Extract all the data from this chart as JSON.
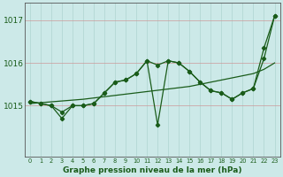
{
  "hours": [
    0,
    1,
    2,
    3,
    4,
    5,
    6,
    7,
    8,
    9,
    10,
    11,
    12,
    13,
    14,
    15,
    16,
    17,
    18,
    19,
    20,
    21,
    22,
    23
  ],
  "series1": [
    1015.1,
    1015.05,
    1015.0,
    1014.85,
    1015.0,
    1015.0,
    1015.05,
    1015.3,
    1015.55,
    1015.6,
    1015.75,
    1016.05,
    1015.95,
    1016.05,
    1016.0,
    1015.8,
    1015.55,
    1015.35,
    1015.3,
    1015.15,
    1015.3,
    1015.4,
    1016.35,
    1017.1
  ],
  "series2": [
    1015.1,
    1015.05,
    1015.0,
    1014.7,
    1015.0,
    1015.0,
    1015.05,
    1015.3,
    1015.55,
    1015.6,
    1015.75,
    1016.05,
    1014.55,
    1016.05,
    1016.0,
    1015.8,
    1015.55,
    1015.35,
    1015.3,
    1015.15,
    1015.3,
    1015.4,
    1016.1,
    1017.1
  ],
  "trend": [
    1015.05,
    1015.07,
    1015.09,
    1015.11,
    1015.13,
    1015.15,
    1015.18,
    1015.21,
    1015.24,
    1015.27,
    1015.3,
    1015.33,
    1015.36,
    1015.39,
    1015.42,
    1015.45,
    1015.5,
    1015.55,
    1015.6,
    1015.65,
    1015.7,
    1015.75,
    1015.85,
    1016.0
  ],
  "ylim": [
    1013.8,
    1017.4
  ],
  "yticks": [
    1015.0,
    1016.0,
    1017.0
  ],
  "yticklabels": [
    "1015",
    "1016",
    "1017"
  ],
  "bg_color": "#cce9e8",
  "line_color": "#1a5c1a",
  "grid_color_v": "#aed4d0",
  "grid_color_h": "#cc9999",
  "xlabel": "Graphe pression niveau de la mer (hPa)"
}
